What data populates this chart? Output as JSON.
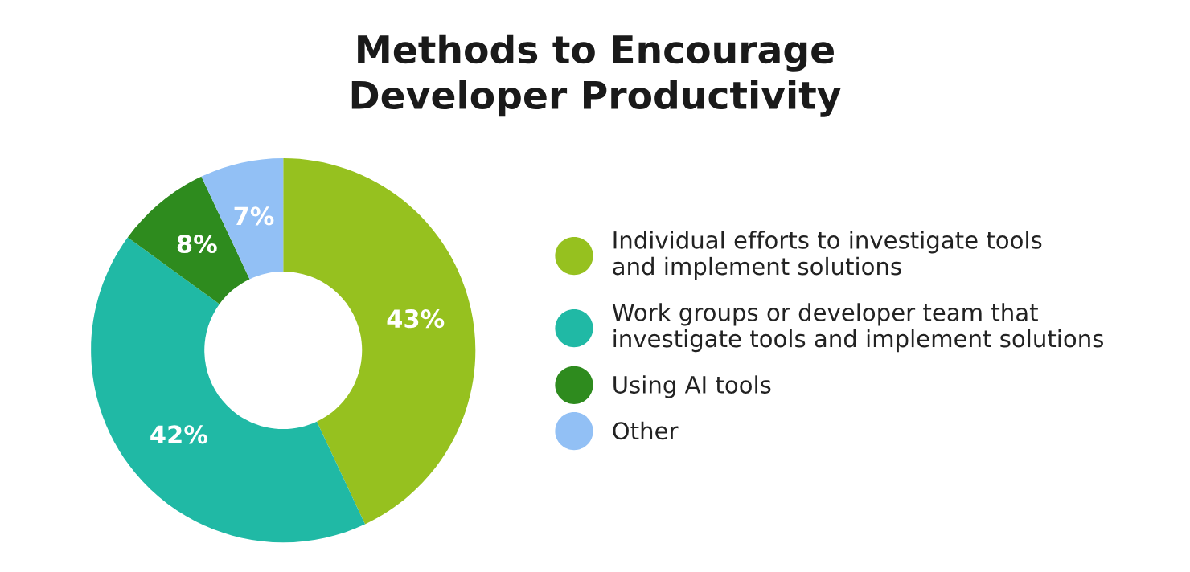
{
  "chart_data": {
    "type": "donut",
    "title": "Methods to Encourage\nDeveloper Productivity",
    "categories": [
      "Individual efforts to investigate tools\nand implement solutions",
      "Work groups or developer team that\ninvestigate tools and implement solutions",
      "Using AI tools",
      "Other"
    ],
    "values": [
      43,
      42,
      8,
      7
    ],
    "value_labels": [
      "43%",
      "42%",
      "8%",
      "7%"
    ],
    "colors": [
      "#96c11f",
      "#20b9a5",
      "#2e8b1e",
      "#92c0f5"
    ],
    "legend": "right"
  }
}
